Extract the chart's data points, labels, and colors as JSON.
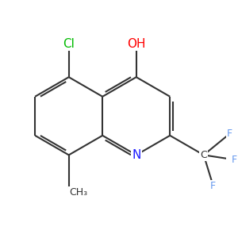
{
  "bg_color": "#ffffff",
  "bond_color": "#333333",
  "bond_width": 1.5,
  "atom_colors": {
    "N": "#1a1aff",
    "O": "#ff0000",
    "Cl": "#00bb00",
    "F": "#6699ee",
    "C": "#333333"
  },
  "font_size_main": 11,
  "font_size_sub": 9,
  "ring_side": 0.33,
  "xlim": [
    -0.85,
    1.05
  ],
  "ylim": [
    -0.85,
    0.8
  ]
}
